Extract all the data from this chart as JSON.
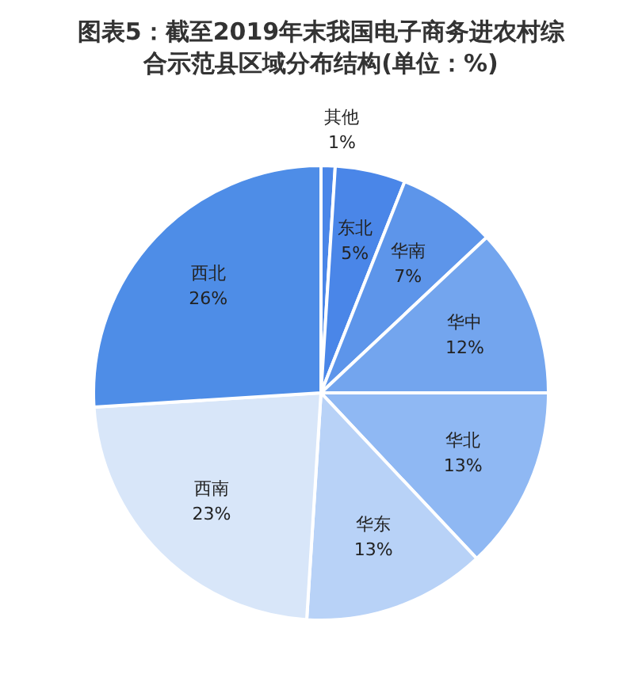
{
  "chart_data": {
    "type": "pie",
    "title": "图表5：截至2019年末我国电子商务进农村综合示范县区域分布结构(单位：%)",
    "categories": [
      "其他",
      "东北",
      "华南",
      "华中",
      "华北",
      "华东",
      "西南",
      "西北"
    ],
    "values": [
      1,
      5,
      7,
      12,
      13,
      13,
      23,
      26
    ],
    "value_labels": [
      "1%",
      "5%",
      "7%",
      "12%",
      "13%",
      "13%",
      "23%",
      "26%"
    ],
    "colors": [
      "#4a86e8",
      "#4a86e8",
      "#5d95ea",
      "#73a5ee",
      "#8fb8f3",
      "#b8d2f7",
      "#d8e6f9",
      "#4e8de7"
    ],
    "legend": false
  }
}
